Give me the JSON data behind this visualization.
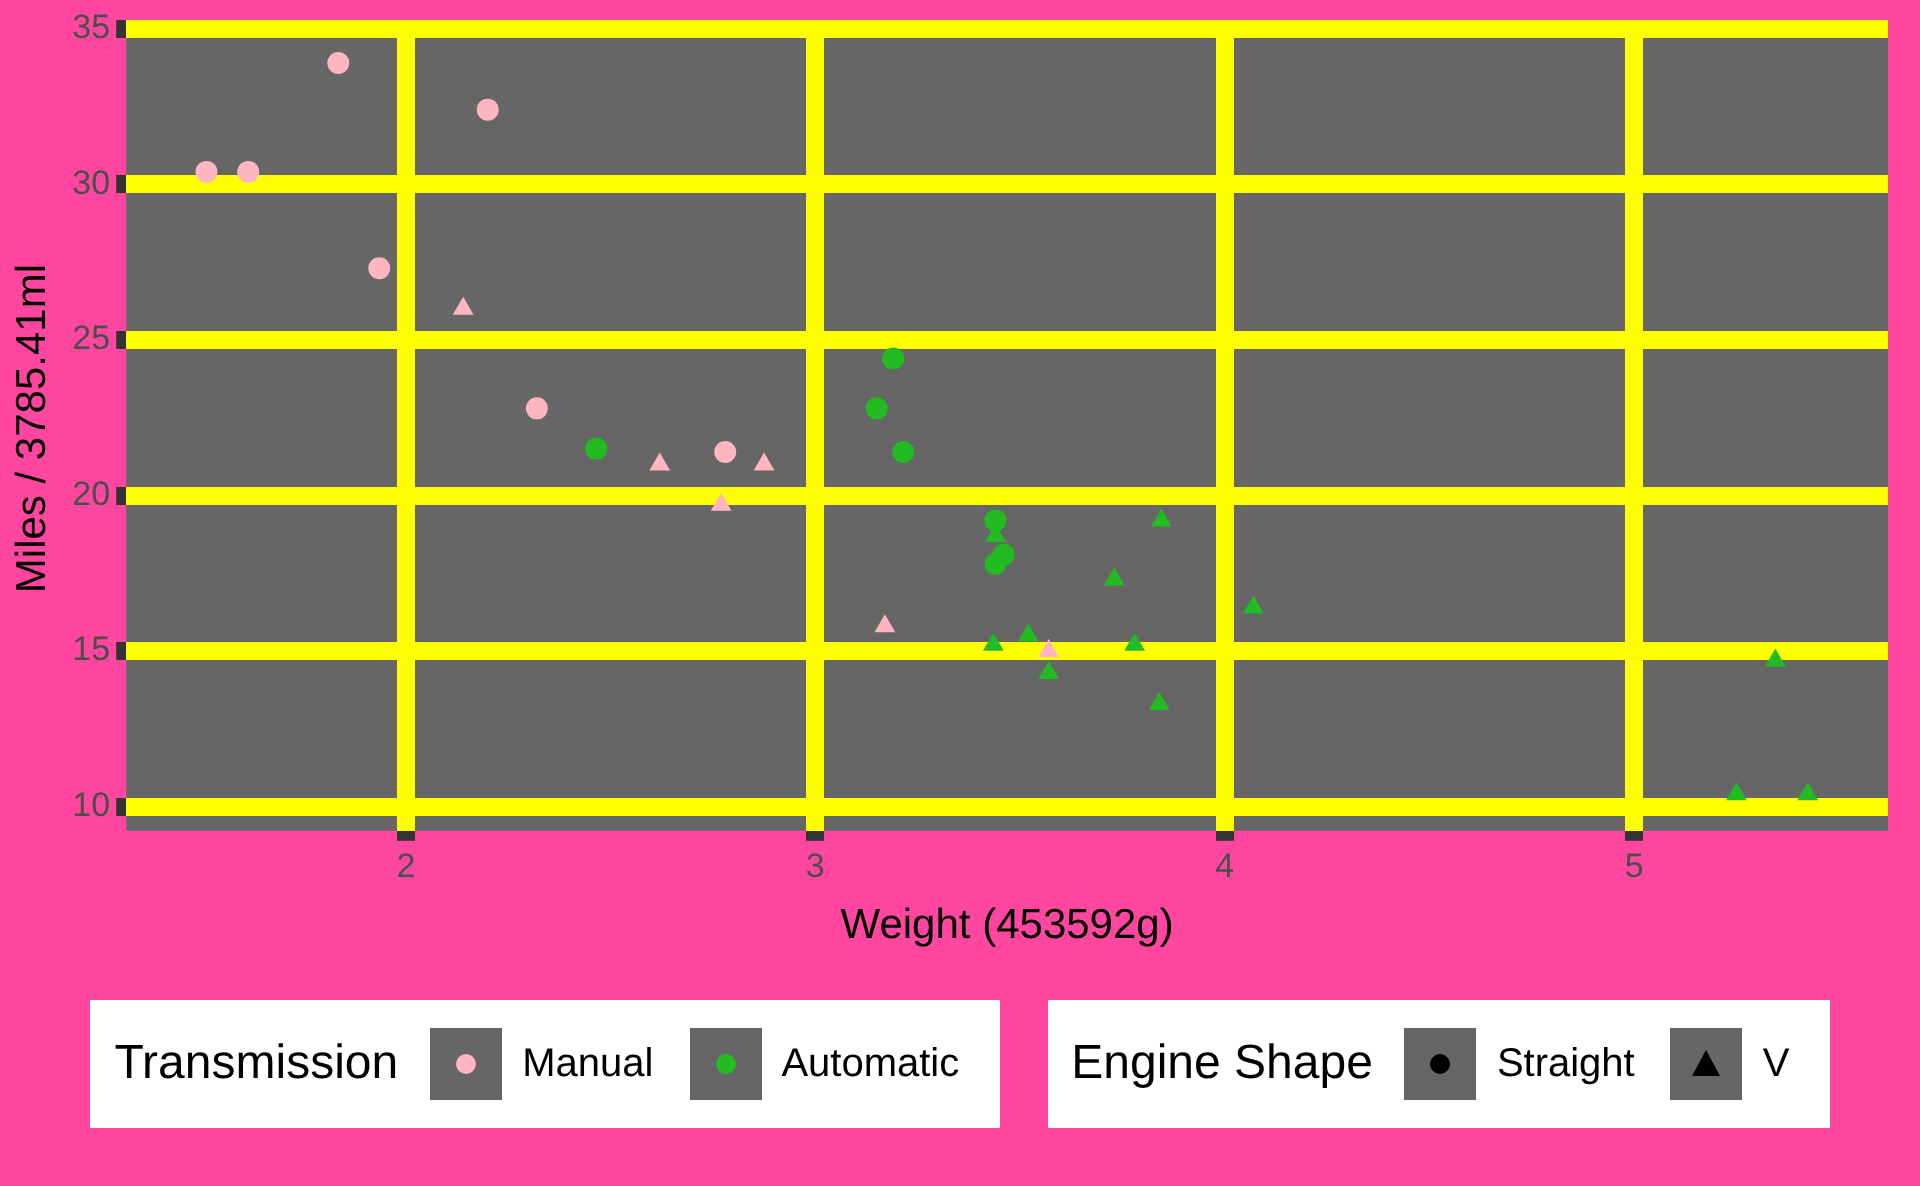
{
  "chart_data": {
    "type": "scatter",
    "xlabel": "Weight (453592g)",
    "ylabel": "Miles / 3785.41ml",
    "xlim": [
      1.317,
      5.62
    ],
    "ylim": [
      9.225,
      35.075
    ],
    "xticks": [
      2,
      3,
      4,
      5
    ],
    "yticks": [
      10,
      15,
      20,
      25,
      30,
      35
    ],
    "grid": true,
    "legend": "bottom",
    "legend_title": [
      "Transmission",
      "Engine Shape"
    ],
    "series": [
      {
        "name": "Manual",
        "color": "#ffb6c1",
        "marker": "circle",
        "x": [
          2.32,
          2.2,
          1.615,
          1.835,
          1.935,
          1.513,
          2.78
        ],
        "values": [
          22.8,
          32.4,
          30.4,
          33.9,
          27.3,
          30.4,
          21.4
        ]
      },
      {
        "color": "#ffb6c1",
        "marker": "triangle",
        "x": [
          2.62,
          2.875,
          2.14,
          3.17,
          2.77,
          3.57
        ],
        "values": [
          21.0,
          21.0,
          26.0,
          15.8,
          19.7,
          15.0
        ]
      },
      {
        "name": "Automatic",
        "color": "#22bb22",
        "marker": "circle",
        "x": [
          3.215,
          3.46,
          3.19,
          3.15,
          3.44,
          3.44,
          2.465
        ],
        "values": [
          21.4,
          18.1,
          24.4,
          22.8,
          19.2,
          17.8,
          21.5
        ]
      },
      {
        "color": "#22bb22",
        "marker": "triangle",
        "x": [
          3.44,
          3.57,
          4.07,
          3.73,
          3.78,
          5.25,
          5.424,
          5.345,
          3.52,
          3.435,
          3.84,
          3.845
        ],
        "values": [
          18.7,
          14.3,
          16.4,
          17.3,
          15.2,
          10.4,
          10.4,
          14.7,
          15.5,
          15.2,
          13.3,
          19.2
        ]
      },
      {
        "name": "Straight",
        "color": "#000000",
        "marker": "circle"
      },
      {
        "name": "V",
        "color": "#000000",
        "marker": "triangle"
      }
    ]
  }
}
